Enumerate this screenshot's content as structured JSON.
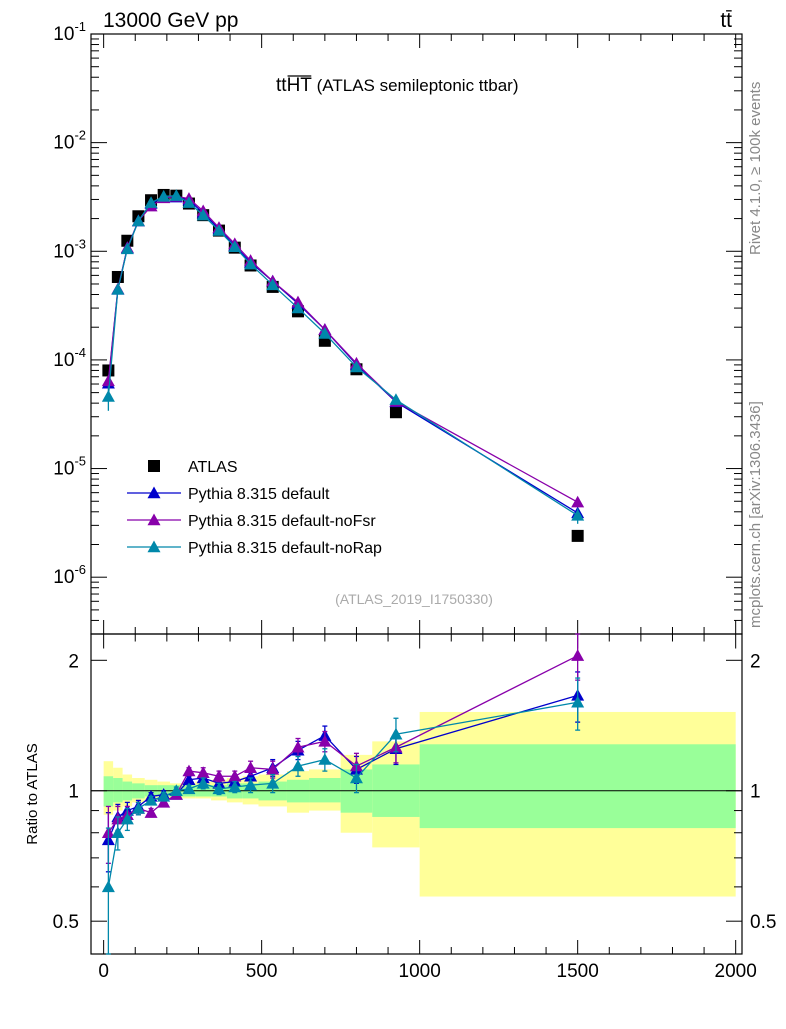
{
  "header": {
    "energy_label": "13000 GeV pp",
    "process_label": "tt̄",
    "plot_title_main": "tt",
    "plot_title_over": "HT",
    "plot_title_rest": " (ATLAS semileptonic ttbar)",
    "analysis_id": "(ATLAS_2019_I1750330)",
    "side_label_top": "Rivet 4.1.0, ≥ 100k events",
    "side_label_bottom": "mcplots.cern.ch [arXiv:1306.3436]"
  },
  "legend": [
    {
      "label": "ATLAS",
      "color": "#000000",
      "marker": "square"
    },
    {
      "label": "Pythia 8.315 default",
      "color": "#0000cc",
      "marker": "triangle"
    },
    {
      "label": "Pythia 8.315 default-noFsr",
      "color": "#8800aa",
      "marker": "triangle"
    },
    {
      "label": "Pythia 8.315 default-noRap",
      "color": "#0088aa",
      "marker": "triangle"
    }
  ],
  "chart_data": [
    {
      "type": "scatter",
      "panel": "main",
      "yscale": "log",
      "ylim": [
        3e-07,
        0.1
      ],
      "xlim": [
        -40,
        2020
      ],
      "ytick_labels": [
        "10^-6",
        "10^-5",
        "10^-4",
        "10^-3",
        "10^-2",
        "10^-1"
      ],
      "ytick_values": [
        1e-06,
        1e-05,
        0.0001,
        0.001,
        0.01,
        0.1
      ],
      "x": [
        15,
        45,
        75,
        110,
        150,
        190,
        230,
        270,
        315,
        365,
        415,
        465,
        535,
        615,
        700,
        800,
        925,
        1500
      ],
      "series": [
        {
          "name": "ATLAS",
          "color": "#000000",
          "marker": "square",
          "line": false,
          "values": [
            8e-05,
            0.00058,
            0.00125,
            0.0021,
            0.00295,
            0.0033,
            0.00325,
            0.00275,
            0.00215,
            0.00155,
            0.00108,
            0.00074,
            0.00047,
            0.00028,
            0.00015,
            8.2e-05,
            3.3e-05,
            2.4e-06
          ]
        },
        {
          "name": "Pythia 8.315 default",
          "color": "#0000cc",
          "marker": "triangle",
          "line": true,
          "values": [
            6.1e-05,
            0.000445,
            0.00107,
            0.0019,
            0.00275,
            0.00315,
            0.00315,
            0.00295,
            0.00225,
            0.0016,
            0.00112,
            0.00079,
            0.00053,
            0.00033,
            0.00019,
            9.1e-05,
            4.1e-05,
            3.9e-06
          ]
        },
        {
          "name": "Pythia 8.315 default-noFsr",
          "color": "#8800aa",
          "marker": "triangle",
          "line": true,
          "values": [
            6.4e-05,
            0.00045,
            0.00108,
            0.0019,
            0.0026,
            0.0031,
            0.0032,
            0.00305,
            0.00235,
            0.00165,
            0.00117,
            0.00082,
            0.00053,
            0.00034,
            0.00019,
            9.3e-05,
            4.15e-05,
            4.9e-06
          ]
        },
        {
          "name": "Pythia 8.315 default-noRap",
          "color": "#0088aa",
          "marker": "triangle",
          "line": true,
          "err": [
            1.2e-05,
            3e-05,
            5e-05,
            8e-05,
            0.0001,
            0.0001,
            0.0001,
            0.0001,
            8e-05,
            6e-05,
            4e-05,
            3e-05,
            2e-05,
            1.5e-05,
            1e-05,
            5e-06,
            3.5e-06,
            6e-07
          ],
          "values": [
            4.6e-05,
            0.000445,
            0.00105,
            0.0019,
            0.0028,
            0.0032,
            0.00325,
            0.0028,
            0.00215,
            0.00155,
            0.0011,
            0.00076,
            0.00049,
            0.0003,
            0.000175,
            8.6e-05,
            4.3e-05,
            3.7e-06
          ]
        }
      ]
    },
    {
      "type": "scatter",
      "panel": "ratio",
      "ylabel": "Ratio to ATLAS",
      "ylim": [
        0.42,
        2.3
      ],
      "xlim": [
        -40,
        2020
      ],
      "ytick_labels": [
        "0.5",
        "1",
        "2"
      ],
      "ytick_values": [
        0.5,
        1,
        2
      ],
      "xtick_labels": [
        "0",
        "500",
        "1000",
        "1500",
        "2000"
      ],
      "xtick_values": [
        0,
        500,
        1000,
        1500,
        2000
      ],
      "x": [
        15,
        45,
        75,
        110,
        150,
        190,
        230,
        270,
        315,
        365,
        415,
        465,
        535,
        615,
        700,
        800,
        925,
        1500
      ],
      "bins": [
        0,
        30,
        60,
        90,
        130,
        170,
        210,
        250,
        290,
        340,
        390,
        440,
        490,
        580,
        650,
        750,
        850,
        1000,
        2000
      ],
      "band_outer_low": [
        0.88,
        0.9,
        0.92,
        0.94,
        0.95,
        0.96,
        0.96,
        0.96,
        0.96,
        0.95,
        0.94,
        0.93,
        0.92,
        0.89,
        0.9,
        0.8,
        0.74,
        0.57
      ],
      "band_outer_high": [
        1.17,
        1.13,
        1.09,
        1.07,
        1.06,
        1.05,
        1.04,
        1.04,
        1.05,
        1.06,
        1.07,
        1.08,
        1.09,
        1.11,
        1.12,
        1.21,
        1.3,
        1.52
      ],
      "band_inner_low": [
        0.92,
        0.94,
        0.95,
        0.96,
        0.97,
        0.97,
        0.97,
        0.97,
        0.97,
        0.97,
        0.96,
        0.96,
        0.95,
        0.94,
        0.94,
        0.89,
        0.87,
        0.82
      ],
      "band_inner_high": [
        1.08,
        1.07,
        1.05,
        1.04,
        1.03,
        1.03,
        1.03,
        1.03,
        1.03,
        1.03,
        1.04,
        1.04,
        1.05,
        1.06,
        1.07,
        1.12,
        1.15,
        1.28
      ],
      "series": [
        {
          "name": "Pythia 8.315 default",
          "color": "#0000cc",
          "values": [
            0.77,
            0.87,
            0.9,
            0.92,
            0.97,
            0.98,
            0.98,
            1.06,
            1.07,
            1.04,
            1.05,
            1.08,
            1.13,
            1.24,
            1.34,
            1.12,
            1.25,
            1.66
          ],
          "err": [
            0.12,
            0.06,
            0.04,
            0.03,
            0.02,
            0.02,
            0.02,
            0.02,
            0.03,
            0.03,
            0.03,
            0.04,
            0.05,
            0.06,
            0.07,
            0.08,
            0.1,
            0.22
          ]
        },
        {
          "name": "Pythia 8.315 default-noFsr",
          "color": "#8800aa",
          "values": [
            0.8,
            0.86,
            0.88,
            0.91,
            0.89,
            0.94,
            0.98,
            1.11,
            1.1,
            1.08,
            1.08,
            1.13,
            1.12,
            1.26,
            1.3,
            1.14,
            1.26,
            2.05
          ],
          "err": [
            0.12,
            0.06,
            0.04,
            0.03,
            0.02,
            0.02,
            0.02,
            0.02,
            0.03,
            0.03,
            0.03,
            0.04,
            0.05,
            0.06,
            0.07,
            0.08,
            0.1,
            0.25
          ]
        },
        {
          "name": "Pythia 8.315 default-noRap",
          "color": "#0088aa",
          "values": [
            0.6,
            0.8,
            0.86,
            0.91,
            0.95,
            0.97,
            1.0,
            1.01,
            1.04,
            1.01,
            1.02,
            1.03,
            1.04,
            1.14,
            1.18,
            1.07,
            1.35,
            1.6
          ],
          "err": [
            0.22,
            0.07,
            0.05,
            0.03,
            0.02,
            0.02,
            0.02,
            0.02,
            0.03,
            0.03,
            0.03,
            0.04,
            0.05,
            0.06,
            0.07,
            0.08,
            0.12,
            0.22
          ]
        }
      ]
    }
  ]
}
